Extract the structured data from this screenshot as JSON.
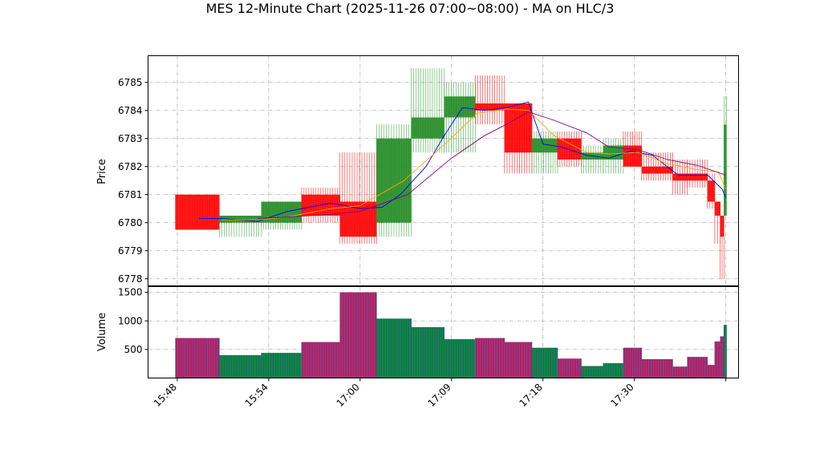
{
  "chart_data": {
    "type": "candlestick",
    "title": "MES 12-Minute Chart (2025-11-26 07:00~08:00) - MA on HLC/3",
    "price_panel": {
      "ylabel": "Price",
      "ylim": [
        6777.75,
        6785.95
      ],
      "yticks": [
        6778,
        6779,
        6780,
        6781,
        6782,
        6783,
        6784,
        6785
      ],
      "grid": true
    },
    "volume_panel": {
      "ylabel": "Volume",
      "ylim": [
        0,
        1600
      ],
      "yticks": [
        500,
        1000,
        1500
      ],
      "grid": true
    },
    "x_domain": [
      -0.8,
      15.35
    ],
    "x_ticks": [
      {
        "pos": 0,
        "label": "15:48"
      },
      {
        "pos": 2.5,
        "label": "15:54"
      },
      {
        "pos": 5,
        "label": "17:00"
      },
      {
        "pos": 7.5,
        "label": "17:09"
      },
      {
        "pos": 10,
        "label": "17:18"
      },
      {
        "pos": 12.5,
        "label": "17:30"
      },
      {
        "pos": 15,
        "label": ""
      }
    ],
    "bars": [
      {
        "x0": -0.05,
        "x1": 1.15,
        "open": 6781.0,
        "high": 6781.0,
        "low": 6779.75,
        "close": 6779.75,
        "volume": 700
      },
      {
        "x0": 1.15,
        "x1": 2.3,
        "open": 6780.0,
        "high": 6780.25,
        "low": 6779.5,
        "close": 6780.25,
        "volume": 400
      },
      {
        "x0": 2.3,
        "x1": 3.4,
        "open": 6780.0,
        "high": 6780.75,
        "low": 6779.75,
        "close": 6780.75,
        "volume": 440
      },
      {
        "x0": 3.4,
        "x1": 4.45,
        "open": 6781.0,
        "high": 6781.25,
        "low": 6780.0,
        "close": 6780.25,
        "volume": 630
      },
      {
        "x0": 4.45,
        "x1": 5.45,
        "open": 6780.75,
        "high": 6782.5,
        "low": 6779.25,
        "close": 6779.5,
        "volume": 1500
      },
      {
        "x0": 5.45,
        "x1": 6.4,
        "open": 6780.0,
        "high": 6783.5,
        "low": 6779.5,
        "close": 6783.0,
        "volume": 1040
      },
      {
        "x0": 6.4,
        "x1": 7.3,
        "open": 6783.0,
        "high": 6785.5,
        "low": 6782.5,
        "close": 6783.75,
        "volume": 890
      },
      {
        "x0": 7.3,
        "x1": 8.15,
        "open": 6783.75,
        "high": 6785.0,
        "low": 6782.5,
        "close": 6784.5,
        "volume": 680
      },
      {
        "x0": 8.15,
        "x1": 8.95,
        "open": 6784.25,
        "high": 6785.25,
        "low": 6783.5,
        "close": 6784.0,
        "volume": 700
      },
      {
        "x0": 8.95,
        "x1": 9.7,
        "open": 6784.25,
        "high": 6784.25,
        "low": 6781.75,
        "close": 6782.5,
        "volume": 630
      },
      {
        "x0": 9.7,
        "x1": 10.4,
        "open": 6782.5,
        "high": 6783.25,
        "low": 6781.75,
        "close": 6783.0,
        "volume": 530
      },
      {
        "x0": 10.4,
        "x1": 11.05,
        "open": 6783.0,
        "high": 6783.25,
        "low": 6782.0,
        "close": 6782.25,
        "volume": 340
      },
      {
        "x0": 11.05,
        "x1": 11.65,
        "open": 6782.25,
        "high": 6782.75,
        "low": 6781.75,
        "close": 6782.5,
        "volume": 210
      },
      {
        "x0": 11.65,
        "x1": 12.2,
        "open": 6782.25,
        "high": 6783.0,
        "low": 6781.75,
        "close": 6782.75,
        "volume": 260
      },
      {
        "x0": 12.2,
        "x1": 12.7,
        "open": 6782.75,
        "high": 6783.25,
        "low": 6782.0,
        "close": 6782.0,
        "volume": 530
      },
      {
        "x0": 12.7,
        "x1": 13.55,
        "open": 6782.0,
        "high": 6782.5,
        "low": 6781.5,
        "close": 6781.75,
        "volume": 330
      },
      {
        "x0": 13.55,
        "x1": 13.95,
        "open": 6781.75,
        "high": 6782.25,
        "low": 6781.0,
        "close": 6781.5,
        "volume": 200
      },
      {
        "x0": 13.95,
        "x1": 14.5,
        "open": 6781.75,
        "high": 6782.25,
        "low": 6781.25,
        "close": 6781.5,
        "volume": 370
      },
      {
        "x0": 14.5,
        "x1": 14.7,
        "open": 6781.5,
        "high": 6781.75,
        "low": 6780.5,
        "close": 6780.75,
        "volume": 230
      },
      {
        "x0": 14.7,
        "x1": 14.85,
        "open": 6780.75,
        "high": 6780.75,
        "low": 6779.25,
        "close": 6780.25,
        "volume": 640
      },
      {
        "x0": 14.85,
        "x1": 14.95,
        "open": 6780.25,
        "high": 6780.25,
        "low": 6778.0,
        "close": 6779.5,
        "volume": 730
      },
      {
        "x0": 14.95,
        "x1": 15.02,
        "open": 6780.25,
        "high": 6784.5,
        "low": 6780.25,
        "close": 6783.5,
        "volume": 930
      }
    ],
    "series": [
      {
        "color": "#0000ff",
        "points": [
          [
            0.6,
            6780.15
          ],
          [
            1.2,
            6780.15
          ],
          [
            2.2,
            6780.05
          ],
          [
            3.0,
            6780.4
          ],
          [
            4.2,
            6780.7
          ],
          [
            5.0,
            6780.5
          ],
          [
            5.6,
            6780.55
          ],
          [
            6.1,
            6781.0
          ],
          [
            6.8,
            6782.0
          ],
          [
            7.3,
            6783.1
          ],
          [
            7.8,
            6784.1
          ],
          [
            8.4,
            6784.0
          ],
          [
            9.0,
            6784.1
          ],
          [
            9.6,
            6784.3
          ],
          [
            10.0,
            6782.8
          ],
          [
            10.5,
            6782.7
          ],
          [
            11.2,
            6782.4
          ],
          [
            11.8,
            6782.3
          ],
          [
            12.4,
            6782.55
          ],
          [
            13.0,
            6782.4
          ],
          [
            13.7,
            6781.7
          ],
          [
            14.5,
            6781.7
          ],
          [
            14.9,
            6781.2
          ],
          [
            15.0,
            6780.9
          ]
        ]
      },
      {
        "color": "#ffa500",
        "points": [
          [
            1.2,
            6780.1
          ],
          [
            2.2,
            6780.1
          ],
          [
            3.0,
            6780.2
          ],
          [
            4.2,
            6780.5
          ],
          [
            5.0,
            6780.6
          ],
          [
            6.2,
            6781.5
          ],
          [
            7.4,
            6782.9
          ],
          [
            8.2,
            6783.9
          ],
          [
            9.0,
            6784.05
          ],
          [
            9.6,
            6784.0
          ],
          [
            10.3,
            6783.1
          ],
          [
            11.2,
            6782.5
          ],
          [
            11.8,
            6782.45
          ],
          [
            12.6,
            6782.5
          ],
          [
            13.4,
            6782.1
          ],
          [
            14.2,
            6781.9
          ],
          [
            14.8,
            6781.8
          ],
          [
            15.0,
            6781.2
          ]
        ]
      },
      {
        "color": "#800080",
        "points": [
          [
            2.2,
            6780.15
          ],
          [
            3.0,
            6780.2
          ],
          [
            4.2,
            6780.3
          ],
          [
            5.0,
            6780.4
          ],
          [
            6.3,
            6781.0
          ],
          [
            7.5,
            6782.3
          ],
          [
            8.4,
            6783.1
          ],
          [
            9.0,
            6783.5
          ],
          [
            9.6,
            6783.95
          ],
          [
            10.3,
            6783.65
          ],
          [
            11.2,
            6783.2
          ],
          [
            11.8,
            6782.7
          ],
          [
            12.6,
            6782.6
          ],
          [
            13.4,
            6782.25
          ],
          [
            14.2,
            6782.05
          ],
          [
            15.0,
            6781.7
          ]
        ]
      }
    ],
    "colors": {
      "up": "#2ca02c",
      "down": "#ff0000",
      "body_up": "#228B22",
      "vol_edge_up": "#2f4f8f",
      "vol_edge_down": "#3b6fb6",
      "vol_face_up": "#0b8a3a",
      "vol_face_down": "#c2185b"
    }
  }
}
